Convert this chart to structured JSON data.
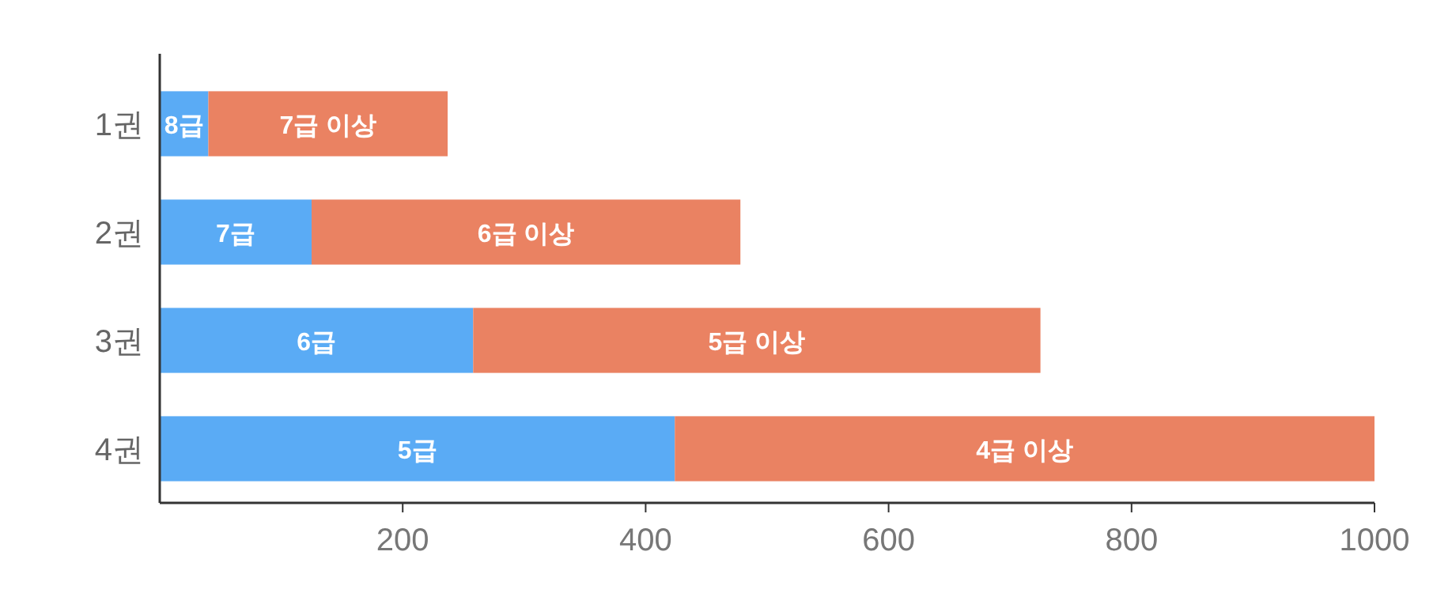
{
  "chart_data": {
    "type": "bar",
    "orientation": "horizontal",
    "stacked": true,
    "categories": [
      "1권",
      "2권",
      "3권",
      "4권"
    ],
    "series": [
      {
        "color": "#5aabf5",
        "values": [
          40,
          125,
          258,
          424
        ]
      },
      {
        "color": "#ea8262",
        "values": [
          197,
          353,
          467,
          576
        ]
      }
    ],
    "annotations": [
      "8급",
      "7급",
      "6급",
      "5급",
      "7급 이상",
      "6급 이상",
      "5급 이상",
      "4급 이상"
    ],
    "xlim": [
      0,
      1000
    ],
    "xticks": [
      200,
      400,
      600,
      800,
      1000
    ],
    "grid": false
  }
}
